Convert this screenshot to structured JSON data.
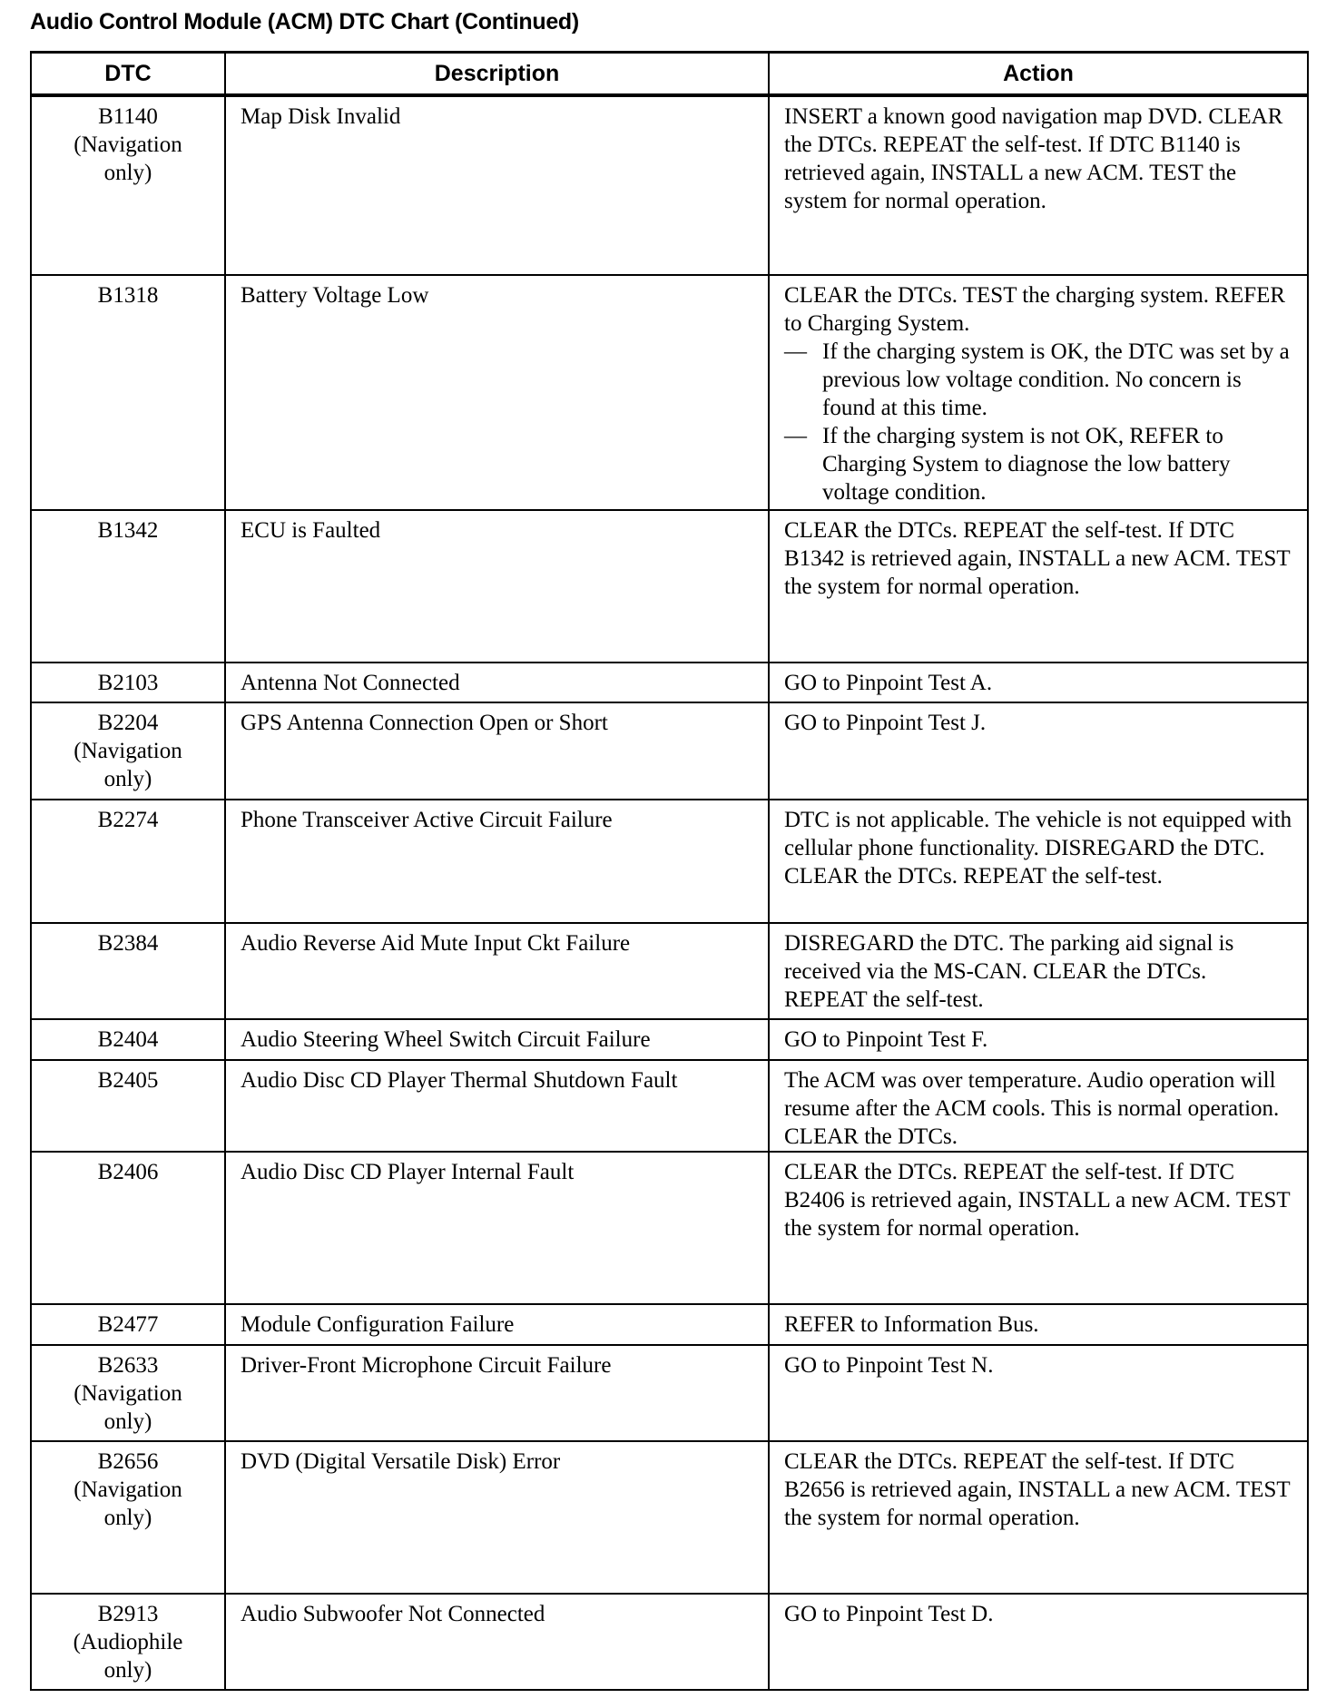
{
  "title": "Audio Control Module (ACM) DTC Chart (Continued)",
  "columns": [
    "DTC",
    "Description",
    "Action"
  ],
  "rows": [
    {
      "dtc": [
        "B1140",
        "(Navigation",
        "only)"
      ],
      "description": "Map Disk Invalid",
      "action": [
        {
          "text": "INSERT a known good navigation map DVD. CLEAR the DTCs. REPEAT the self-test. If DTC B1140 is retrieved again, INSTALL a new ACM. TEST the system for  normal operation."
        }
      ]
    },
    {
      "dtc": [
        "B1318"
      ],
      "description": "Battery Voltage Low",
      "action": [
        {
          "text": "CLEAR the DTCs. TEST the charging system. REFER to Charging System."
        },
        {
          "bullet": "—",
          "text": "If the charging system is OK, the DTC was set by a previous low voltage condition. No concern is found at this time."
        },
        {
          "bullet": "—",
          "text": "If the charging system is not OK, REFER to Charging System to diagnose the low battery voltage condition."
        }
      ]
    },
    {
      "dtc": [
        "B1342"
      ],
      "description": "ECU is Faulted",
      "action": [
        {
          "text": "CLEAR the DTCs. REPEAT the self-test. If DTC B1342 is retrieved again, INSTALL a new ACM. TEST the system for normal operation."
        }
      ]
    },
    {
      "dtc": [
        "B2103"
      ],
      "description": "Antenna Not Connected",
      "action": [
        {
          "text": "GO to Pinpoint Test A."
        }
      ]
    },
    {
      "dtc": [
        "B2204",
        "(Navigation",
        "only)"
      ],
      "description": "GPS Antenna Connection Open or Short",
      "action": [
        {
          "text": "GO to Pinpoint Test J."
        }
      ]
    },
    {
      "dtc": [
        "B2274"
      ],
      "description": "Phone Transceiver Active Circuit Failure",
      "action": [
        {
          "text": "DTC is not applicable. The vehicle is not equipped with cellular phone functionality. DISREGARD the DTC. CLEAR the DTCs. REPEAT the self-test."
        }
      ]
    },
    {
      "dtc": [
        "B2384"
      ],
      "description": "Audio Reverse Aid Mute Input Ckt Failure",
      "action": [
        {
          "text": "DISREGARD the DTC. The parking aid signal is received via the MS-CAN. CLEAR the DTCs. REPEAT the self-test."
        }
      ]
    },
    {
      "dtc": [
        "B2404"
      ],
      "description": "Audio Steering Wheel Switch Circuit Failure",
      "action": [
        {
          "text": "GO to Pinpoint Test F."
        }
      ]
    },
    {
      "dtc": [
        "B2405"
      ],
      "description": "Audio Disc CD Player Thermal Shutdown Fault",
      "action": [
        {
          "text": "The ACM was over temperature. Audio operation will resume after the ACM cools. This is normal operation. CLEAR the DTCs."
        }
      ]
    },
    {
      "dtc": [
        "B2406"
      ],
      "description": "Audio Disc CD Player Internal Fault",
      "action": [
        {
          "text": "CLEAR the DTCs. REPEAT the self-test. If DTC B2406 is retrieved again, INSTALL a new ACM. TEST the system for normal operation."
        }
      ]
    },
    {
      "dtc": [
        "B2477"
      ],
      "description": "Module Configuration Failure",
      "action": [
        {
          "text": "REFER to Information Bus."
        }
      ]
    },
    {
      "dtc": [
        "B2633",
        "(Navigation",
        "only)"
      ],
      "description": "Driver-Front Microphone Circuit Failure",
      "action": [
        {
          "text": "GO to Pinpoint Test N."
        }
      ]
    },
    {
      "dtc": [
        "B2656",
        "(Navigation",
        "only)"
      ],
      "description": "DVD (Digital Versatile Disk) Error",
      "action": [
        {
          "text": "CLEAR the DTCs. REPEAT the self-test. If DTC B2656 is retrieved again, INSTALL a new ACM. TEST the system for normal operation."
        }
      ]
    },
    {
      "dtc": [
        "B2913",
        "(Audiophile",
        "only)"
      ],
      "description": "Audio Subwoofer Not Connected",
      "action": [
        {
          "text": "GO to Pinpoint Test D."
        }
      ]
    }
  ]
}
